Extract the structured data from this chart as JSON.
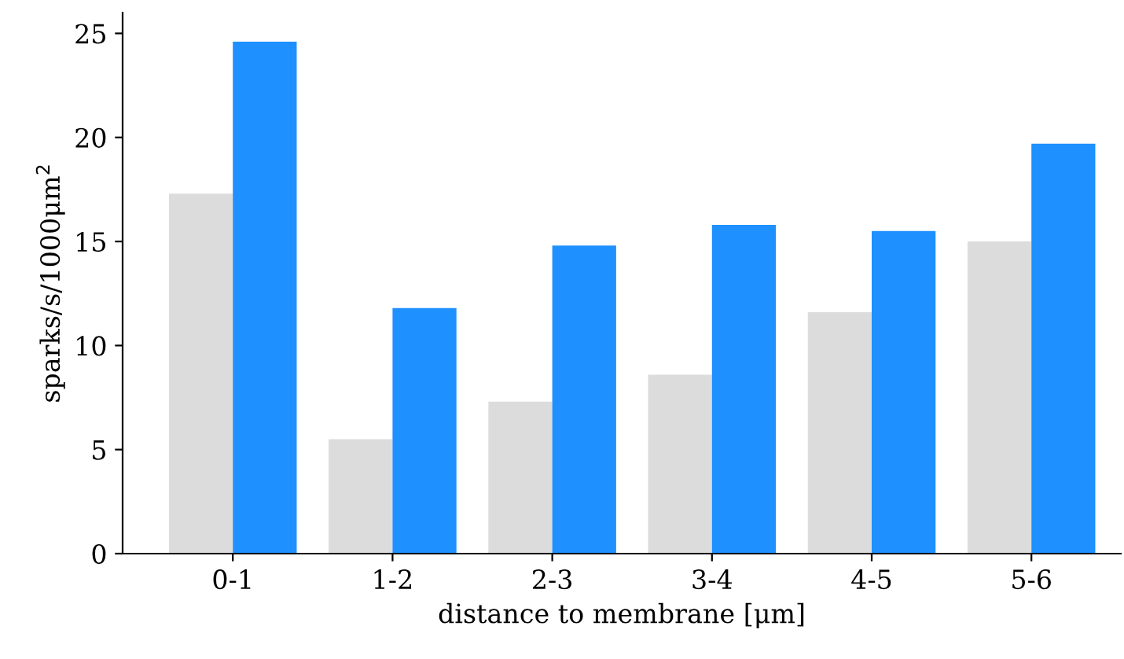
{
  "chart_data": {
    "type": "bar",
    "xlabel": "distance to membrane [μm]",
    "ylabel": "sparks/s/1000μm$^{2}$",
    "categories": [
      "0-1",
      "1-2",
      "2-3",
      "3-4",
      "4-5",
      "5-6"
    ],
    "series": [
      {
        "color": "#dcdcdc",
        "values": [
          17.3,
          5.5,
          7.3,
          8.6,
          11.6,
          15.0
        ]
      },
      {
        "color": "#1e90ff",
        "values": [
          24.6,
          11.8,
          14.8,
          15.8,
          15.5,
          19.7
        ]
      }
    ],
    "ylim": [
      0,
      26
    ],
    "yticks": [
      0,
      5,
      10,
      15,
      20,
      25
    ],
    "grid": false,
    "legend": false
  }
}
